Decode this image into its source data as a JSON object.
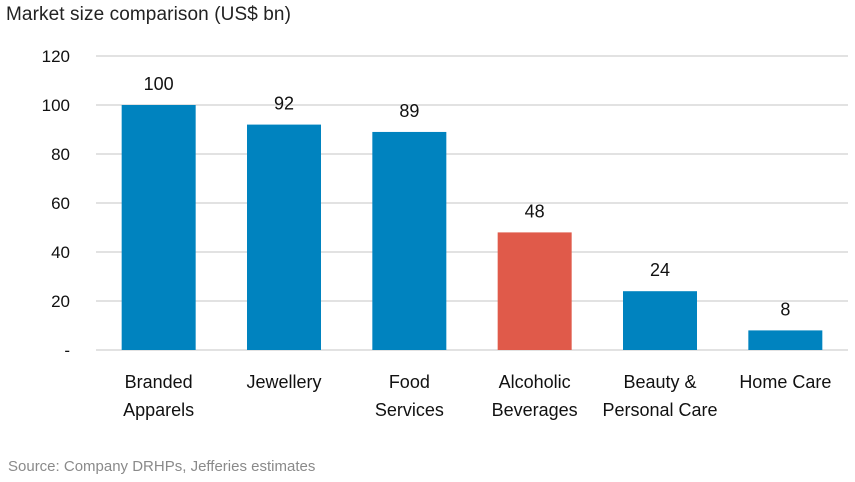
{
  "chart_data": {
    "type": "bar",
    "title": "Market size comparison (US$ bn)",
    "categories": [
      [
        "Branded",
        "Apparels"
      ],
      [
        "Jewellery"
      ],
      [
        "Food",
        "Services"
      ],
      [
        "Alcoholic",
        "Beverages"
      ],
      [
        "Beauty &",
        "Personal Care"
      ],
      [
        "Home Care"
      ]
    ],
    "values": [
      100,
      92,
      89,
      48,
      24,
      8
    ],
    "highlight_index": 3,
    "colors": {
      "default": "#0083BF",
      "highlight": "#E05A4A",
      "grid": "#D9D9D9"
    },
    "ylim": [
      0,
      120
    ],
    "yticks": [
      0,
      20,
      40,
      60,
      80,
      100,
      120
    ],
    "ytick_labels": [
      "-",
      "20",
      "40",
      "60",
      "80",
      "100",
      "120"
    ],
    "grid": true,
    "xlabel": "",
    "ylabel": ""
  },
  "source": "Source: Company DRHPs, Jefferies estimates"
}
